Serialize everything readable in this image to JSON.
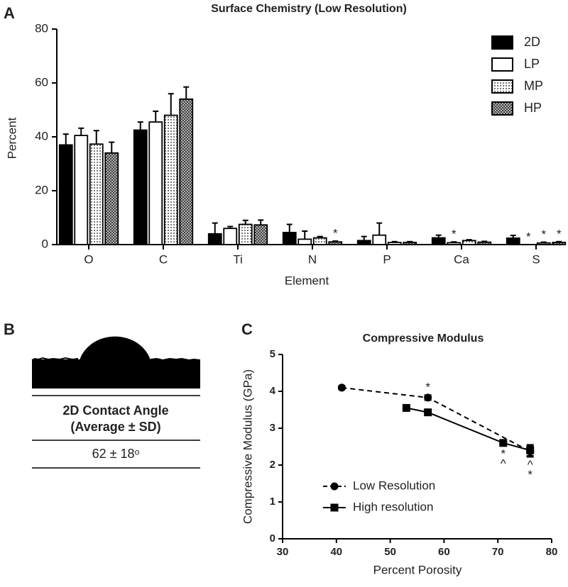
{
  "chart_data": [
    {
      "type": "bar",
      "panel": "A",
      "title": "Surface Chemistry (Low  Resolution)",
      "y_label": "Percent",
      "x_label": "Element",
      "categories": [
        "O",
        "C",
        "Ti",
        "N",
        "P",
        "Ca",
        "S"
      ],
      "ylim": [
        0,
        80
      ],
      "yticks": [
        0,
        20,
        40,
        60,
        80
      ],
      "legend": "upper-right",
      "series": [
        {
          "name": "2D",
          "color": "#000000",
          "pattern": "solid",
          "values": [
            37,
            42.5,
            4,
            4.5,
            1.5,
            2.5,
            2.4
          ],
          "errors": [
            4,
            3,
            4,
            3,
            1.5,
            1,
            1
          ],
          "annotations": [
            null,
            null,
            null,
            null,
            null,
            null,
            null
          ]
        },
        {
          "name": "LP",
          "color": "#000000",
          "pattern": "white",
          "values": [
            40.5,
            45.5,
            6,
            2,
            3.5,
            0.7,
            0
          ],
          "errors": [
            2.7,
            4,
            0.7,
            3,
            4.5,
            0.3,
            0
          ],
          "annotations": [
            null,
            null,
            null,
            null,
            null,
            "*",
            "*"
          ]
        },
        {
          "name": "MP",
          "color": "#000000",
          "pattern": "dots",
          "values": [
            37.3,
            48,
            7.5,
            2.5,
            0.8,
            1.5,
            0.6
          ],
          "errors": [
            5,
            8,
            1.5,
            0.5,
            0.3,
            0.3,
            0.3
          ],
          "annotations": [
            null,
            null,
            null,
            null,
            null,
            null,
            "*"
          ]
        },
        {
          "name": "HP",
          "color": "#000000",
          "pattern": "crosshatch",
          "values": [
            34,
            54,
            7.3,
            1,
            0.8,
            0.9,
            0.8
          ],
          "errors": [
            4,
            4.5,
            1.8,
            0.3,
            0.3,
            0.3,
            0.3
          ],
          "annotations": [
            null,
            null,
            null,
            "*",
            null,
            null,
            "*"
          ]
        }
      ]
    },
    {
      "type": "line",
      "panel": "C",
      "title": "Compressive  Modulus",
      "y_label": "Compressive Modulus  (GPa)",
      "x_label": "Percent Porosity",
      "xlim": [
        30,
        80
      ],
      "xticks": [
        30,
        40,
        50,
        60,
        70,
        80
      ],
      "ylim": [
        0,
        5
      ],
      "yticks": [
        0,
        1,
        2,
        3,
        4,
        5
      ],
      "legend": "lower-left",
      "series": [
        {
          "name": "Low Resolution",
          "color": "#000000",
          "line_style": "dashed",
          "marker": "circle",
          "x": [
            41,
            57,
            76
          ],
          "values": [
            4.1,
            3.83,
            2.37
          ],
          "errors": [
            0.05,
            0.07,
            0.15
          ]
        },
        {
          "name": "High resolution",
          "color": "#000000",
          "line_style": "solid",
          "marker": "square",
          "x": [
            53,
            57,
            71,
            76
          ],
          "values": [
            3.55,
            3.43,
            2.6,
            2.4
          ],
          "errors": [
            0.04,
            0.05,
            0.08,
            0.15
          ]
        }
      ],
      "annotations": [
        {
          "text": "*",
          "x": 57,
          "position": "above"
        },
        {
          "text": "*",
          "x": 71,
          "position": "below"
        },
        {
          "text": "^",
          "x": 71,
          "position": "below"
        },
        {
          "text": "^",
          "x": 76,
          "position": "below"
        },
        {
          "text": "*",
          "x": 76,
          "position": "below"
        }
      ]
    }
  ],
  "panel_b": {
    "panel": "B",
    "header": [
      "2D Contact Angle",
      "(Average ± SD)"
    ],
    "value": "62 ± 18ᵒ"
  }
}
